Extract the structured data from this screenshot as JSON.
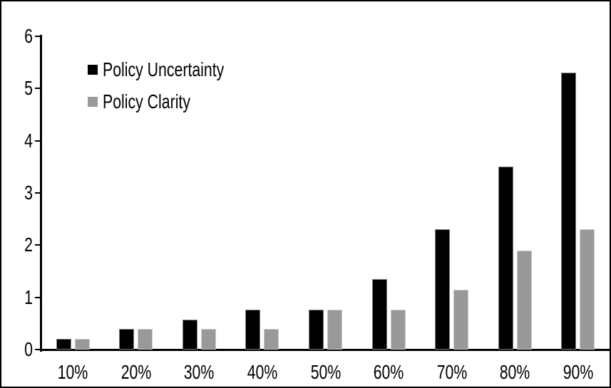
{
  "colors": {
    "background": "#ffffff",
    "frame_border": "#000000",
    "axis": "#000000"
  },
  "chart_data": {
    "type": "bar",
    "title": "",
    "xlabel": "",
    "ylabel": "",
    "categories": [
      "10%",
      "20%",
      "30%",
      "40%",
      "50%",
      "60%",
      "70%",
      "80%",
      "90%"
    ],
    "series": [
      {
        "name": "Policy Uncertainty",
        "color": "#000000",
        "border_color": "#7f7f7f",
        "values": [
          0.2,
          0.4,
          0.57,
          0.77,
          0.77,
          1.35,
          2.3,
          3.5,
          5.3
        ]
      },
      {
        "name": "Policy Clarity",
        "color": "#999999",
        "border_color": "#c9c9c9",
        "values": [
          0.2,
          0.4,
          0.4,
          0.4,
          0.77,
          0.77,
          1.15,
          1.9,
          2.3
        ]
      }
    ],
    "ylim": [
      0,
      6
    ],
    "yticks": [
      0,
      1,
      2,
      3,
      4,
      5,
      6
    ],
    "ytick_labels": [
      "0",
      "1",
      "2",
      "3",
      "4",
      "5",
      "6"
    ],
    "grid": false,
    "legend_position": "top-left"
  }
}
